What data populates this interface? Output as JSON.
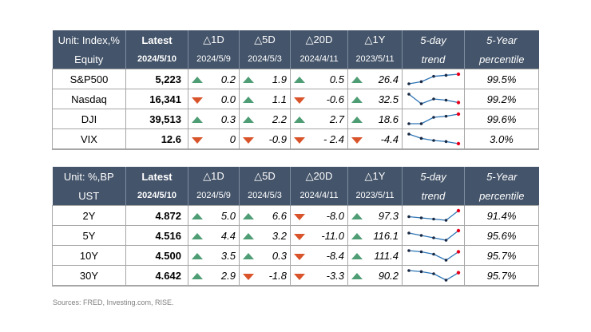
{
  "equity": {
    "header1": [
      "Unit: Index,%",
      "Latest",
      "△1D",
      "△5D",
      "△20D",
      "△1Y",
      "5-day",
      "5-Year"
    ],
    "header2": [
      "Equity",
      "2024/5/10",
      "2024/5/9",
      "2024/5/3",
      "2024/4/11",
      "2023/5/11",
      "trend",
      "percentile"
    ],
    "rows": [
      {
        "name": "S&P500",
        "latest": "5,223",
        "d1": "0.2",
        "d1_dir": "up",
        "d5": "1.9",
        "d5_dir": "up",
        "d20": "0.5",
        "d20_dir": "up",
        "y1": "26.4",
        "y1_dir": "up",
        "trend": [
          1,
          3,
          8,
          9,
          10
        ],
        "pct": "99.5%"
      },
      {
        "name": "Nasdaq",
        "latest": "16,341",
        "d1": "0.0",
        "d1_dir": "down",
        "d5": "1.1",
        "d5_dir": "up",
        "d20": "-0.6",
        "d20_dir": "down",
        "y1": "32.5",
        "y1_dir": "up",
        "trend": [
          10,
          2,
          6,
          5,
          3
        ],
        "pct": "99.2%"
      },
      {
        "name": "DJI",
        "latest": "39,513",
        "d1": "0.3",
        "d1_dir": "up",
        "d5": "2.2",
        "d5_dir": "up",
        "d20": "2.7",
        "d20_dir": "up",
        "y1": "18.6",
        "y1_dir": "up",
        "trend": [
          1,
          1,
          7,
          8,
          10
        ],
        "pct": "99.6%"
      },
      {
        "name": "VIX",
        "latest": "12.6",
        "d1": "0",
        "d1_dir": "down",
        "d5": "-0.9",
        "d5_dir": "down",
        "d20": "- 2.4",
        "d20_dir": "down",
        "y1": "-4.4",
        "y1_dir": "down",
        "trend": [
          10,
          6,
          4,
          3,
          1
        ],
        "pct": "3.0%"
      }
    ]
  },
  "ust": {
    "header1": [
      "Unit: %,BP",
      "Latest",
      "△1D",
      "△5D",
      "△20D",
      "△1Y",
      "5-day",
      "5-Year"
    ],
    "header2": [
      "UST",
      "2024/5/10",
      "2024/5/9",
      "2024/5/3",
      "2024/4/11",
      "2023/5/11",
      "trend",
      "percentile"
    ],
    "rows": [
      {
        "name": "2Y",
        "latest": "4.872",
        "d1": "5.0",
        "d1_dir": "up",
        "d5": "6.6",
        "d5_dir": "up",
        "d20": "-8.0",
        "d20_dir": "down",
        "y1": "97.3",
        "y1_dir": "up",
        "trend": [
          5,
          4,
          3,
          2,
          10
        ],
        "pct": "91.4%"
      },
      {
        "name": "5Y",
        "latest": "4.516",
        "d1": "4.4",
        "d1_dir": "up",
        "d5": "3.2",
        "d5_dir": "up",
        "d20": "-11.0",
        "d20_dir": "down",
        "y1": "116.1",
        "y1_dir": "up",
        "trend": [
          8,
          6,
          4,
          2,
          10
        ],
        "pct": "95.6%"
      },
      {
        "name": "10Y",
        "latest": "4.500",
        "d1": "3.5",
        "d1_dir": "up",
        "d5": "0.3",
        "d5_dir": "up",
        "d20": "-8.4",
        "d20_dir": "down",
        "y1": "111.4",
        "y1_dir": "up",
        "trend": [
          9,
          8,
          6,
          1,
          8
        ],
        "pct": "95.7%"
      },
      {
        "name": "30Y",
        "latest": "4.642",
        "d1": "2.9",
        "d1_dir": "up",
        "d5": "-1.8",
        "d5_dir": "down",
        "d20": "-3.3",
        "d20_dir": "down",
        "y1": "90.2",
        "y1_dir": "up",
        "trend": [
          10,
          9,
          7,
          1,
          8
        ],
        "pct": "95.7%"
      }
    ]
  },
  "colors": {
    "header_bg": "#44546a",
    "up": "#4f9d75",
    "down": "#d9542b",
    "trend_line": "#2e75b6",
    "trend_last": "#e8001c",
    "trend_dot": "#1a2a44"
  },
  "source": "Sources: FRED, Investing.com, RISE."
}
